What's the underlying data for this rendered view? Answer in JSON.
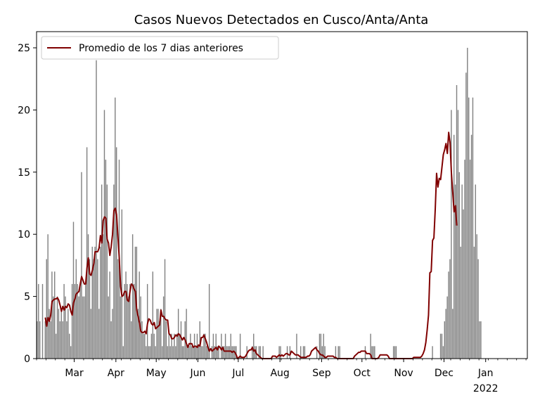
{
  "chart_data": {
    "type": "bar",
    "title": "Casos Nuevos Detectados en Cusco/Anta/Anta",
    "xlabel": "",
    "ylabel": "",
    "x_start": "2021-02-01",
    "x_end": "2022-01-31",
    "ylim": [
      0,
      26.3
    ],
    "y_ticks": [
      0,
      5,
      10,
      15,
      20,
      25
    ],
    "x_ticks": [
      {
        "date": "2021-03-01",
        "label": "Mar",
        "sublabel": ""
      },
      {
        "date": "2021-04-01",
        "label": "Apr",
        "sublabel": ""
      },
      {
        "date": "2021-05-01",
        "label": "May",
        "sublabel": ""
      },
      {
        "date": "2021-06-01",
        "label": "Jun",
        "sublabel": ""
      },
      {
        "date": "2021-07-01",
        "label": "Jul",
        "sublabel": ""
      },
      {
        "date": "2021-08-01",
        "label": "Aug",
        "sublabel": ""
      },
      {
        "date": "2021-09-01",
        "label": "Sep",
        "sublabel": ""
      },
      {
        "date": "2021-10-01",
        "label": "Oct",
        "sublabel": ""
      },
      {
        "date": "2021-11-01",
        "label": "Nov",
        "sublabel": ""
      },
      {
        "date": "2021-12-01",
        "label": "Dec",
        "sublabel": ""
      },
      {
        "date": "2022-01-01",
        "label": "Jan",
        "sublabel": "2022"
      }
    ],
    "legend": {
      "position": "top-left"
    },
    "grid": false,
    "series": [
      {
        "name": "",
        "kind": "bar",
        "color": "#808080",
        "values": [
          3,
          6,
          3,
          0,
          6,
          0,
          3,
          8,
          10,
          4,
          3,
          7,
          5,
          7,
          2,
          5,
          4,
          3,
          4,
          3,
          6,
          5,
          3,
          4,
          2,
          1,
          6,
          11,
          6,
          8,
          6,
          5,
          6,
          15,
          5,
          5,
          6,
          17,
          10,
          8,
          4,
          9,
          8,
          9,
          24,
          8,
          4,
          9,
          14,
          10,
          20,
          16,
          14,
          5,
          7,
          3,
          4,
          14,
          21,
          17,
          8,
          16,
          5,
          12,
          1,
          6,
          7,
          6,
          5,
          6,
          3,
          10,
          6,
          9,
          9,
          4,
          7,
          5,
          3,
          2,
          2,
          1,
          6,
          1,
          1,
          2,
          7,
          2,
          1,
          4,
          4,
          3,
          4,
          1,
          5,
          8,
          3,
          1,
          2,
          1,
          2,
          1,
          2,
          1,
          2,
          4,
          2,
          3,
          1,
          1,
          3,
          4,
          1,
          1,
          2,
          1,
          1,
          2,
          1,
          2,
          1,
          3,
          1,
          1,
          2,
          2,
          1,
          1,
          6,
          0,
          1,
          2,
          1,
          2,
          1,
          1,
          0,
          2,
          1,
          1,
          2,
          1,
          1,
          1,
          2,
          1,
          1,
          1,
          1,
          0,
          0,
          2,
          0,
          0,
          0,
          0,
          1,
          0,
          0,
          0,
          1,
          2,
          1,
          1,
          0,
          1,
          1,
          0,
          1,
          0,
          0,
          0,
          0,
          0,
          0,
          0,
          0,
          0,
          0,
          0,
          1,
          1,
          0,
          0,
          0,
          0,
          1,
          0,
          1,
          0,
          0,
          0,
          0,
          2,
          0,
          0,
          1,
          0,
          1,
          1,
          0,
          0,
          0,
          0,
          0,
          0,
          0,
          0,
          1,
          0,
          2,
          2,
          1,
          2,
          1,
          0,
          0,
          0,
          0,
          0,
          0,
          0,
          1,
          0,
          1,
          1,
          0,
          0,
          0,
          0,
          0,
          0,
          0,
          0,
          0,
          0,
          0,
          0,
          0,
          0,
          0,
          0,
          0,
          0,
          1,
          0,
          0,
          0,
          2,
          1,
          1,
          1,
          0,
          0,
          0,
          0,
          0,
          0,
          0,
          0,
          0,
          0,
          0,
          0,
          0,
          1,
          1,
          1,
          0,
          0,
          0,
          0,
          0,
          0,
          0,
          0,
          0,
          0,
          0,
          0,
          0,
          0,
          0,
          0,
          0,
          0,
          0,
          0,
          0,
          0,
          0,
          0,
          0,
          0,
          1,
          0,
          0,
          0,
          0,
          0,
          2,
          2,
          1,
          3,
          4,
          5,
          7,
          8,
          20,
          4,
          18,
          14,
          22,
          20,
          15,
          9,
          14,
          12,
          16,
          23,
          25,
          21,
          16,
          18,
          21,
          9,
          14,
          10,
          8,
          3,
          3
        ]
      },
      {
        "name": "Promedio de los 7 dias anteriores",
        "kind": "line",
        "color": "#800000",
        "values": [
          null,
          null,
          null,
          null,
          null,
          null,
          3.3,
          2.6,
          3.3,
          3.0,
          3.5,
          4.6,
          4.7,
          4.8,
          4.8,
          4.9,
          4.7,
          4.3,
          3.8,
          4.2,
          3.9,
          4.2,
          4.1,
          4.4,
          4.3,
          3.8,
          3.5,
          4.5,
          4.8,
          5.2,
          5.3,
          5.4,
          6.0,
          6.6,
          6.3,
          6.0,
          6.0,
          7.3,
          8.1,
          6.8,
          6.7,
          7.1,
          7.6,
          8.6,
          8.6,
          8.6,
          8.9,
          9.9,
          9.3,
          11.1,
          11.4,
          11.3,
          9.6,
          9.3,
          8.3,
          9.0,
          10.0,
          11.9,
          12.1,
          11.6,
          9.8,
          8.1,
          5.8,
          5.0,
          5.1,
          5.4,
          5.4,
          4.7,
          4.6,
          5.4,
          6.0,
          5.9,
          5.6,
          5.4,
          3.9,
          3.4,
          2.9,
          2.2,
          2.1,
          2.1,
          2.2,
          2.0,
          2.8,
          3.2,
          3.1,
          2.8,
          2.7,
          2.9,
          2.4,
          2.5,
          2.6,
          2.7,
          3.9,
          3.4,
          3.4,
          3.2,
          3.1,
          3.1,
          2.0,
          1.9,
          1.6,
          1.6,
          1.7,
          1.9,
          1.8,
          2.0,
          1.9,
          1.7,
          1.5,
          1.7,
          1.5,
          1.2,
          0.9,
          1.2,
          1.2,
          1.2,
          0.9,
          1.0,
          1.0,
          0.9,
          1.1,
          1.0,
          1.7,
          1.7,
          1.9,
          1.6,
          1.3,
          0.9,
          0.6,
          0.8,
          0.6,
          0.7,
          0.8,
          0.9,
          0.7,
          1.0,
          0.9,
          0.7,
          0.9,
          0.6,
          0.6,
          0.6,
          0.6,
          0.6,
          0.6,
          0.5,
          0.6,
          0.5,
          0.3,
          0.0,
          0.1,
          0.2,
          0.1,
          0.1,
          0.1,
          0.2,
          0.4,
          0.6,
          0.7,
          0.7,
          0.9,
          0.6,
          0.7,
          0.4,
          0.3,
          0.2,
          0.1,
          0.0,
          0.0,
          0.0,
          0.0,
          0.0,
          0.0,
          0.0,
          0.0,
          0.2,
          0.2,
          0.2,
          0.1,
          0.2,
          0.3,
          0.2,
          0.3,
          0.2,
          0.3,
          0.4,
          0.4,
          0.3,
          0.3,
          0.6,
          0.5,
          0.4,
          0.3,
          0.3,
          0.3,
          0.2,
          0.1,
          0.1,
          0.1,
          0.1,
          0.1,
          0.2,
          0.2,
          0.3,
          0.6,
          0.7,
          0.8,
          0.9,
          0.7,
          0.6,
          0.4,
          0.3,
          0.3,
          0.2,
          0.1,
          0.1,
          0.2,
          0.2,
          0.2,
          0.2,
          0.2,
          0.1,
          0.1,
          0.0,
          0.0,
          0.0,
          0.0,
          0.0,
          0.0,
          0.0,
          0.0,
          0.0,
          0.0,
          0.0,
          0.0,
          0.0,
          0.2,
          0.3,
          0.4,
          0.5,
          0.5,
          0.6,
          0.6,
          0.6,
          0.6,
          0.4,
          0.4,
          0.4,
          0.3,
          0.0,
          0.0,
          0.0,
          0.0,
          0.0,
          0.1,
          0.3,
          0.3,
          0.3,
          0.3,
          0.3,
          0.3,
          0.2,
          0.0,
          0.0,
          0.0,
          0.0,
          0.0,
          0.0,
          0.0,
          0.0,
          0.0,
          0.0,
          0.0,
          0.0,
          0.0,
          0.0,
          0.0,
          0.0,
          0.0,
          0.0,
          0.1,
          0.1,
          0.1,
          0.1,
          0.1,
          0.1,
          0.2,
          0.4,
          0.7,
          1.3,
          2.3,
          3.5,
          6.9,
          7.0,
          9.5,
          9.7,
          12.0,
          14.9,
          13.8,
          14.5,
          14.4,
          15.4,
          16.4,
          16.8,
          17.3,
          16.5,
          18.2,
          17.4,
          15.0,
          13.4,
          11.8,
          12.3,
          10.7
        ]
      }
    ]
  }
}
